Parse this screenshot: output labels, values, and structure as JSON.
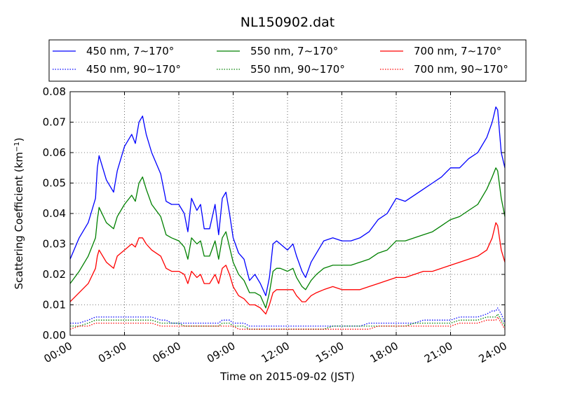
{
  "chart_data": {
    "type": "line",
    "title": "NL150902.dat",
    "xlabel": "Time on 2015-09-02 (JST)",
    "ylabel": "Scattering Coefficient (km",
    "ylabel_sup": "−1",
    "ylabel_close": ")",
    "xlim": [
      "00:00",
      "24:00"
    ],
    "ylim": [
      0.0,
      0.08
    ],
    "grid": true,
    "legend_position": "top",
    "x_tick_labels": [
      "00:00",
      "03:00",
      "06:00",
      "09:00",
      "12:00",
      "15:00",
      "18:00",
      "21:00",
      "24:00"
    ],
    "y_ticks": [
      0.0,
      0.01,
      0.02,
      0.03,
      0.04,
      0.05,
      0.06,
      0.07,
      0.08
    ],
    "y_tick_labels": [
      "0.00",
      "0.01",
      "0.02",
      "0.03",
      "0.04",
      "0.05",
      "0.06",
      "0.07",
      "0.08"
    ],
    "x_hours": [
      0.0,
      0.5,
      1.0,
      1.4,
      1.5,
      1.6,
      2.0,
      2.4,
      2.6,
      3.0,
      3.4,
      3.6,
      3.8,
      4.0,
      4.2,
      4.5,
      5.0,
      5.3,
      5.6,
      6.0,
      6.3,
      6.5,
      6.7,
      7.0,
      7.2,
      7.4,
      7.7,
      8.0,
      8.2,
      8.4,
      8.6,
      8.8,
      9.0,
      9.3,
      9.6,
      9.9,
      10.2,
      10.5,
      10.8,
      11.0,
      11.2,
      11.4,
      11.6,
      12.0,
      12.3,
      12.5,
      12.8,
      13.0,
      13.3,
      13.6,
      14.0,
      14.5,
      15.0,
      15.5,
      16.0,
      16.5,
      17.0,
      17.5,
      18.0,
      18.5,
      19.0,
      19.5,
      20.0,
      20.5,
      21.0,
      21.5,
      22.0,
      22.5,
      23.0,
      23.3,
      23.5,
      23.6,
      23.8,
      24.0
    ],
    "series": [
      {
        "name": "450 nm, 7∼170°",
        "style": "solid",
        "color": "#0000ff",
        "values": [
          0.025,
          0.032,
          0.037,
          0.045,
          0.055,
          0.059,
          0.051,
          0.047,
          0.054,
          0.062,
          0.066,
          0.063,
          0.07,
          0.072,
          0.066,
          0.06,
          0.053,
          0.044,
          0.043,
          0.043,
          0.04,
          0.034,
          0.045,
          0.041,
          0.043,
          0.035,
          0.035,
          0.043,
          0.033,
          0.045,
          0.047,
          0.04,
          0.032,
          0.027,
          0.025,
          0.018,
          0.02,
          0.017,
          0.013,
          0.019,
          0.03,
          0.031,
          0.03,
          0.028,
          0.03,
          0.026,
          0.021,
          0.019,
          0.024,
          0.027,
          0.031,
          0.032,
          0.031,
          0.031,
          0.032,
          0.034,
          0.038,
          0.04,
          0.045,
          0.044,
          0.046,
          0.048,
          0.05,
          0.052,
          0.055,
          0.055,
          0.058,
          0.06,
          0.065,
          0.07,
          0.075,
          0.074,
          0.06,
          0.055
        ]
      },
      {
        "name": "450 nm, 90∼170°",
        "style": "dotted",
        "color": "#0000ff",
        "values": [
          0.004,
          0.004,
          0.005,
          0.006,
          0.006,
          0.006,
          0.006,
          0.006,
          0.006,
          0.006,
          0.006,
          0.006,
          0.006,
          0.006,
          0.006,
          0.006,
          0.005,
          0.005,
          0.004,
          0.004,
          0.004,
          0.004,
          0.004,
          0.004,
          0.004,
          0.004,
          0.004,
          0.004,
          0.004,
          0.005,
          0.005,
          0.005,
          0.004,
          0.004,
          0.004,
          0.003,
          0.003,
          0.003,
          0.003,
          0.003,
          0.003,
          0.003,
          0.003,
          0.003,
          0.003,
          0.003,
          0.003,
          0.003,
          0.003,
          0.003,
          0.003,
          0.003,
          0.003,
          0.003,
          0.003,
          0.004,
          0.004,
          0.004,
          0.004,
          0.004,
          0.004,
          0.005,
          0.005,
          0.005,
          0.005,
          0.006,
          0.006,
          0.006,
          0.007,
          0.008,
          0.008,
          0.009,
          0.007,
          0.004
        ]
      },
      {
        "name": "550 nm, 7∼170°",
        "style": "solid",
        "color": "#008000",
        "values": [
          0.017,
          0.021,
          0.026,
          0.032,
          0.038,
          0.042,
          0.037,
          0.035,
          0.039,
          0.043,
          0.046,
          0.044,
          0.05,
          0.052,
          0.048,
          0.043,
          0.039,
          0.033,
          0.032,
          0.031,
          0.029,
          0.025,
          0.032,
          0.03,
          0.031,
          0.026,
          0.026,
          0.031,
          0.025,
          0.032,
          0.034,
          0.029,
          0.024,
          0.02,
          0.018,
          0.014,
          0.014,
          0.013,
          0.009,
          0.014,
          0.021,
          0.022,
          0.022,
          0.021,
          0.022,
          0.019,
          0.016,
          0.015,
          0.018,
          0.02,
          0.022,
          0.023,
          0.023,
          0.023,
          0.024,
          0.025,
          0.027,
          0.028,
          0.031,
          0.031,
          0.032,
          0.033,
          0.034,
          0.036,
          0.038,
          0.039,
          0.041,
          0.043,
          0.048,
          0.052,
          0.055,
          0.054,
          0.045,
          0.039
        ]
      },
      {
        "name": "550 nm, 90∼170°",
        "style": "dotted",
        "color": "#008000",
        "values": [
          0.003,
          0.003,
          0.004,
          0.005,
          0.005,
          0.005,
          0.005,
          0.005,
          0.005,
          0.005,
          0.005,
          0.005,
          0.005,
          0.005,
          0.005,
          0.005,
          0.004,
          0.004,
          0.004,
          0.004,
          0.003,
          0.003,
          0.003,
          0.003,
          0.003,
          0.003,
          0.003,
          0.003,
          0.003,
          0.004,
          0.004,
          0.004,
          0.003,
          0.003,
          0.003,
          0.002,
          0.002,
          0.002,
          0.002,
          0.002,
          0.002,
          0.002,
          0.002,
          0.002,
          0.002,
          0.002,
          0.002,
          0.002,
          0.002,
          0.002,
          0.002,
          0.003,
          0.003,
          0.003,
          0.003,
          0.003,
          0.003,
          0.003,
          0.003,
          0.003,
          0.004,
          0.004,
          0.004,
          0.004,
          0.004,
          0.005,
          0.005,
          0.005,
          0.006,
          0.006,
          0.006,
          0.007,
          0.005,
          0.003
        ]
      },
      {
        "name": "700 nm, 7∼170°",
        "style": "solid",
        "color": "#ff0000",
        "values": [
          0.011,
          0.014,
          0.017,
          0.022,
          0.026,
          0.028,
          0.024,
          0.022,
          0.026,
          0.028,
          0.03,
          0.029,
          0.032,
          0.032,
          0.03,
          0.028,
          0.026,
          0.022,
          0.021,
          0.021,
          0.02,
          0.017,
          0.021,
          0.019,
          0.02,
          0.017,
          0.017,
          0.02,
          0.017,
          0.022,
          0.023,
          0.02,
          0.016,
          0.013,
          0.012,
          0.01,
          0.01,
          0.009,
          0.007,
          0.01,
          0.014,
          0.015,
          0.015,
          0.015,
          0.015,
          0.013,
          0.011,
          0.011,
          0.013,
          0.014,
          0.015,
          0.016,
          0.015,
          0.015,
          0.015,
          0.016,
          0.017,
          0.018,
          0.019,
          0.019,
          0.02,
          0.021,
          0.021,
          0.022,
          0.023,
          0.024,
          0.025,
          0.026,
          0.028,
          0.032,
          0.037,
          0.036,
          0.028,
          0.024
        ]
      },
      {
        "name": "700 nm, 90∼170°",
        "style": "dotted",
        "color": "#ff0000",
        "values": [
          0.002,
          0.003,
          0.003,
          0.004,
          0.004,
          0.004,
          0.004,
          0.004,
          0.004,
          0.004,
          0.004,
          0.004,
          0.004,
          0.004,
          0.004,
          0.004,
          0.003,
          0.003,
          0.003,
          0.003,
          0.003,
          0.003,
          0.003,
          0.003,
          0.003,
          0.003,
          0.003,
          0.003,
          0.003,
          0.003,
          0.003,
          0.003,
          0.003,
          0.002,
          0.002,
          0.002,
          0.002,
          0.002,
          0.002,
          0.002,
          0.002,
          0.002,
          0.002,
          0.002,
          0.002,
          0.002,
          0.002,
          0.002,
          0.002,
          0.002,
          0.002,
          0.002,
          0.002,
          0.002,
          0.002,
          0.002,
          0.003,
          0.003,
          0.003,
          0.003,
          0.003,
          0.003,
          0.003,
          0.003,
          0.003,
          0.004,
          0.004,
          0.004,
          0.005,
          0.005,
          0.005,
          0.006,
          0.004,
          0.002
        ]
      }
    ]
  }
}
